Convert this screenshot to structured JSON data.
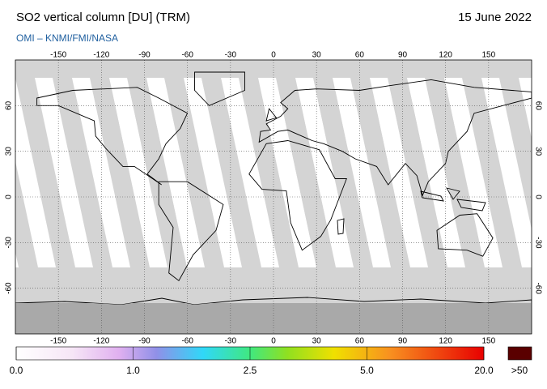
{
  "header": {
    "title": "SO2 vertical column [DU] (TRM)",
    "date": "15 June 2022",
    "source": "OMI  –  KNMI/FMI/NASA"
  },
  "map": {
    "lon_range": [
      -180,
      180
    ],
    "lat_range": [
      -90,
      90
    ],
    "lon_ticks": [
      -150,
      -120,
      -90,
      -60,
      -30,
      0,
      30,
      60,
      90,
      120,
      150
    ],
    "lat_ticks": [
      -60,
      -30,
      0,
      30,
      60
    ]
  },
  "colorbar": {
    "labels": [
      "0.0",
      "1.0",
      "2.5",
      "5.0",
      "20.0"
    ],
    "overflow_label": ">50"
  }
}
